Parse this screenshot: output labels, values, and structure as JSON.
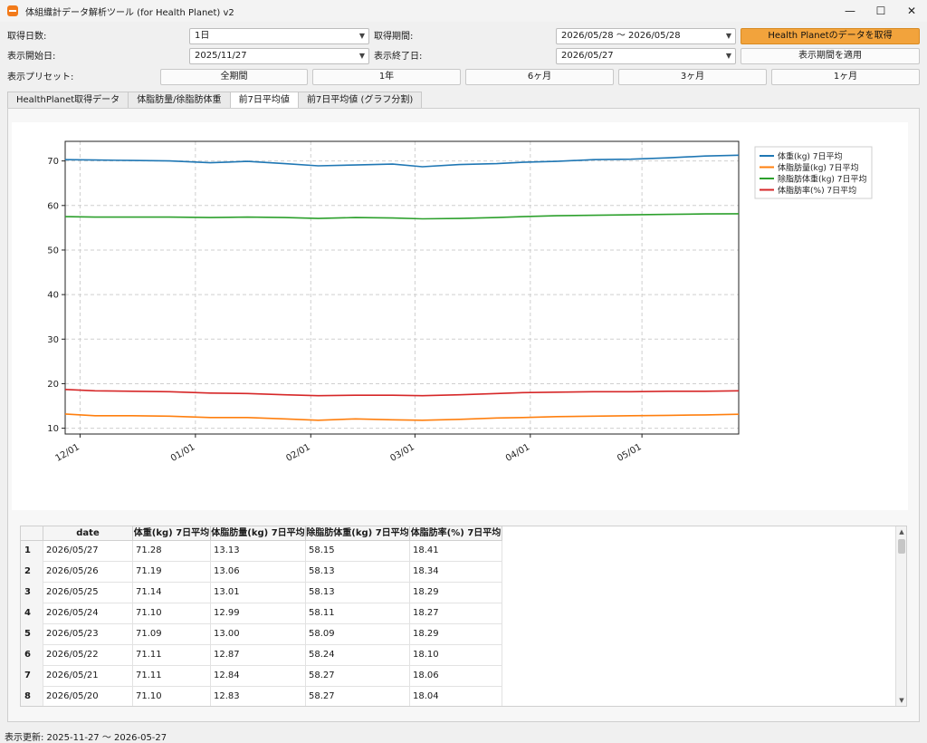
{
  "window": {
    "title": "体組織計データ解析ツール (for Health Planet) v2",
    "minimize_glyph": "—",
    "maximize_glyph": "☐",
    "close_glyph": "✕"
  },
  "controls": {
    "days_label": "取得日数:",
    "days_value": "1日",
    "period_label": "取得期間:",
    "period_value": "2026/05/28 〜 2026/05/28",
    "fetch_button": "Health Planetのデータを取得",
    "start_label": "表示開始日:",
    "start_value": "2025/11/27",
    "end_label": "表示終了日:",
    "end_value": "2026/05/27",
    "apply_button": "表示期間を適用",
    "preset_label": "表示プリセット:",
    "presets": [
      "全期間",
      "1年",
      "6ヶ月",
      "3ヶ月",
      "1ヶ月"
    ]
  },
  "tabs": [
    {
      "label": "HealthPlanet取得データ",
      "active": false
    },
    {
      "label": "体脂肪量/徐脂肪体重",
      "active": false
    },
    {
      "label": "前7日平均値",
      "active": true
    },
    {
      "label": "前7日平均値 (グラフ分割)",
      "active": false
    }
  ],
  "chart_data": {
    "type": "line",
    "title": "",
    "xlabel": "",
    "ylabel": "",
    "x_ticks": [
      "12/01",
      "01/01",
      "02/01",
      "03/01",
      "04/01",
      "05/01"
    ],
    "y_ticks": [
      10,
      20,
      30,
      40,
      50,
      60,
      70
    ],
    "ylim": [
      8.7,
      74.4
    ],
    "xlim": [
      "2025-11-27",
      "2026-05-27"
    ],
    "grid": true,
    "legend": "top-right, outside",
    "dates": [
      "2025-11-27",
      "2025-12-05",
      "2025-12-15",
      "2025-12-25",
      "2026-01-05",
      "2026-01-15",
      "2026-01-25",
      "2026-02-03",
      "2026-02-13",
      "2026-02-23",
      "2026-03-03",
      "2026-03-13",
      "2026-03-23",
      "2026-03-30",
      "2026-04-08",
      "2026-04-18",
      "2026-04-28",
      "2026-05-08",
      "2026-05-18",
      "2026-05-27"
    ],
    "series": [
      {
        "name": "体重(kg) 7日平均",
        "color": "#1f77b4",
        "values": [
          70.3,
          70.2,
          70.1,
          70.0,
          69.6,
          69.9,
          69.4,
          68.9,
          69.1,
          69.3,
          68.7,
          69.2,
          69.4,
          69.7,
          69.9,
          70.3,
          70.4,
          70.7,
          71.1,
          71.28
        ]
      },
      {
        "name": "体脂肪量(kg) 7日平均",
        "color": "#ff7f0e",
        "values": [
          13.2,
          12.8,
          12.8,
          12.7,
          12.4,
          12.4,
          12.1,
          11.8,
          12.1,
          11.9,
          11.8,
          12.0,
          12.3,
          12.4,
          12.6,
          12.7,
          12.8,
          12.9,
          13.0,
          13.13
        ]
      },
      {
        "name": "除脂肪体重(kg) 7日平均",
        "color": "#2ca02c",
        "values": [
          57.5,
          57.4,
          57.4,
          57.4,
          57.3,
          57.4,
          57.3,
          57.1,
          57.3,
          57.2,
          57.0,
          57.1,
          57.3,
          57.5,
          57.7,
          57.8,
          57.9,
          58.0,
          58.1,
          58.15
        ]
      },
      {
        "name": "体脂肪率(%) 7日平均",
        "color": "#d62728",
        "values": [
          18.7,
          18.4,
          18.3,
          18.2,
          17.9,
          17.8,
          17.5,
          17.3,
          17.4,
          17.4,
          17.3,
          17.5,
          17.8,
          18.0,
          18.1,
          18.2,
          18.2,
          18.3,
          18.3,
          18.41
        ]
      }
    ]
  },
  "table": {
    "columns": [
      "date",
      "体重(kg) 7日平均",
      "体脂肪量(kg) 7日平均",
      "除脂肪体重(kg) 7日平均",
      "体脂肪率(%) 7日平均"
    ],
    "rows": [
      {
        "index": "1",
        "cells": [
          "2026/05/27",
          "71.28",
          "13.13",
          "58.15",
          "18.41"
        ]
      },
      {
        "index": "2",
        "cells": [
          "2026/05/26",
          "71.19",
          "13.06",
          "58.13",
          "18.34"
        ]
      },
      {
        "index": "3",
        "cells": [
          "2026/05/25",
          "71.14",
          "13.01",
          "58.13",
          "18.29"
        ]
      },
      {
        "index": "4",
        "cells": [
          "2026/05/24",
          "71.10",
          "12.99",
          "58.11",
          "18.27"
        ]
      },
      {
        "index": "5",
        "cells": [
          "2026/05/23",
          "71.09",
          "13.00",
          "58.09",
          "18.29"
        ]
      },
      {
        "index": "6",
        "cells": [
          "2026/05/22",
          "71.11",
          "12.87",
          "58.24",
          "18.10"
        ]
      },
      {
        "index": "7",
        "cells": [
          "2026/05/21",
          "71.11",
          "12.84",
          "58.27",
          "18.06"
        ]
      },
      {
        "index": "8",
        "cells": [
          "2026/05/20",
          "71.10",
          "12.83",
          "58.27",
          "18.04"
        ]
      }
    ]
  },
  "status": "表示更新: 2025-11-27 〜 2026-05-27"
}
